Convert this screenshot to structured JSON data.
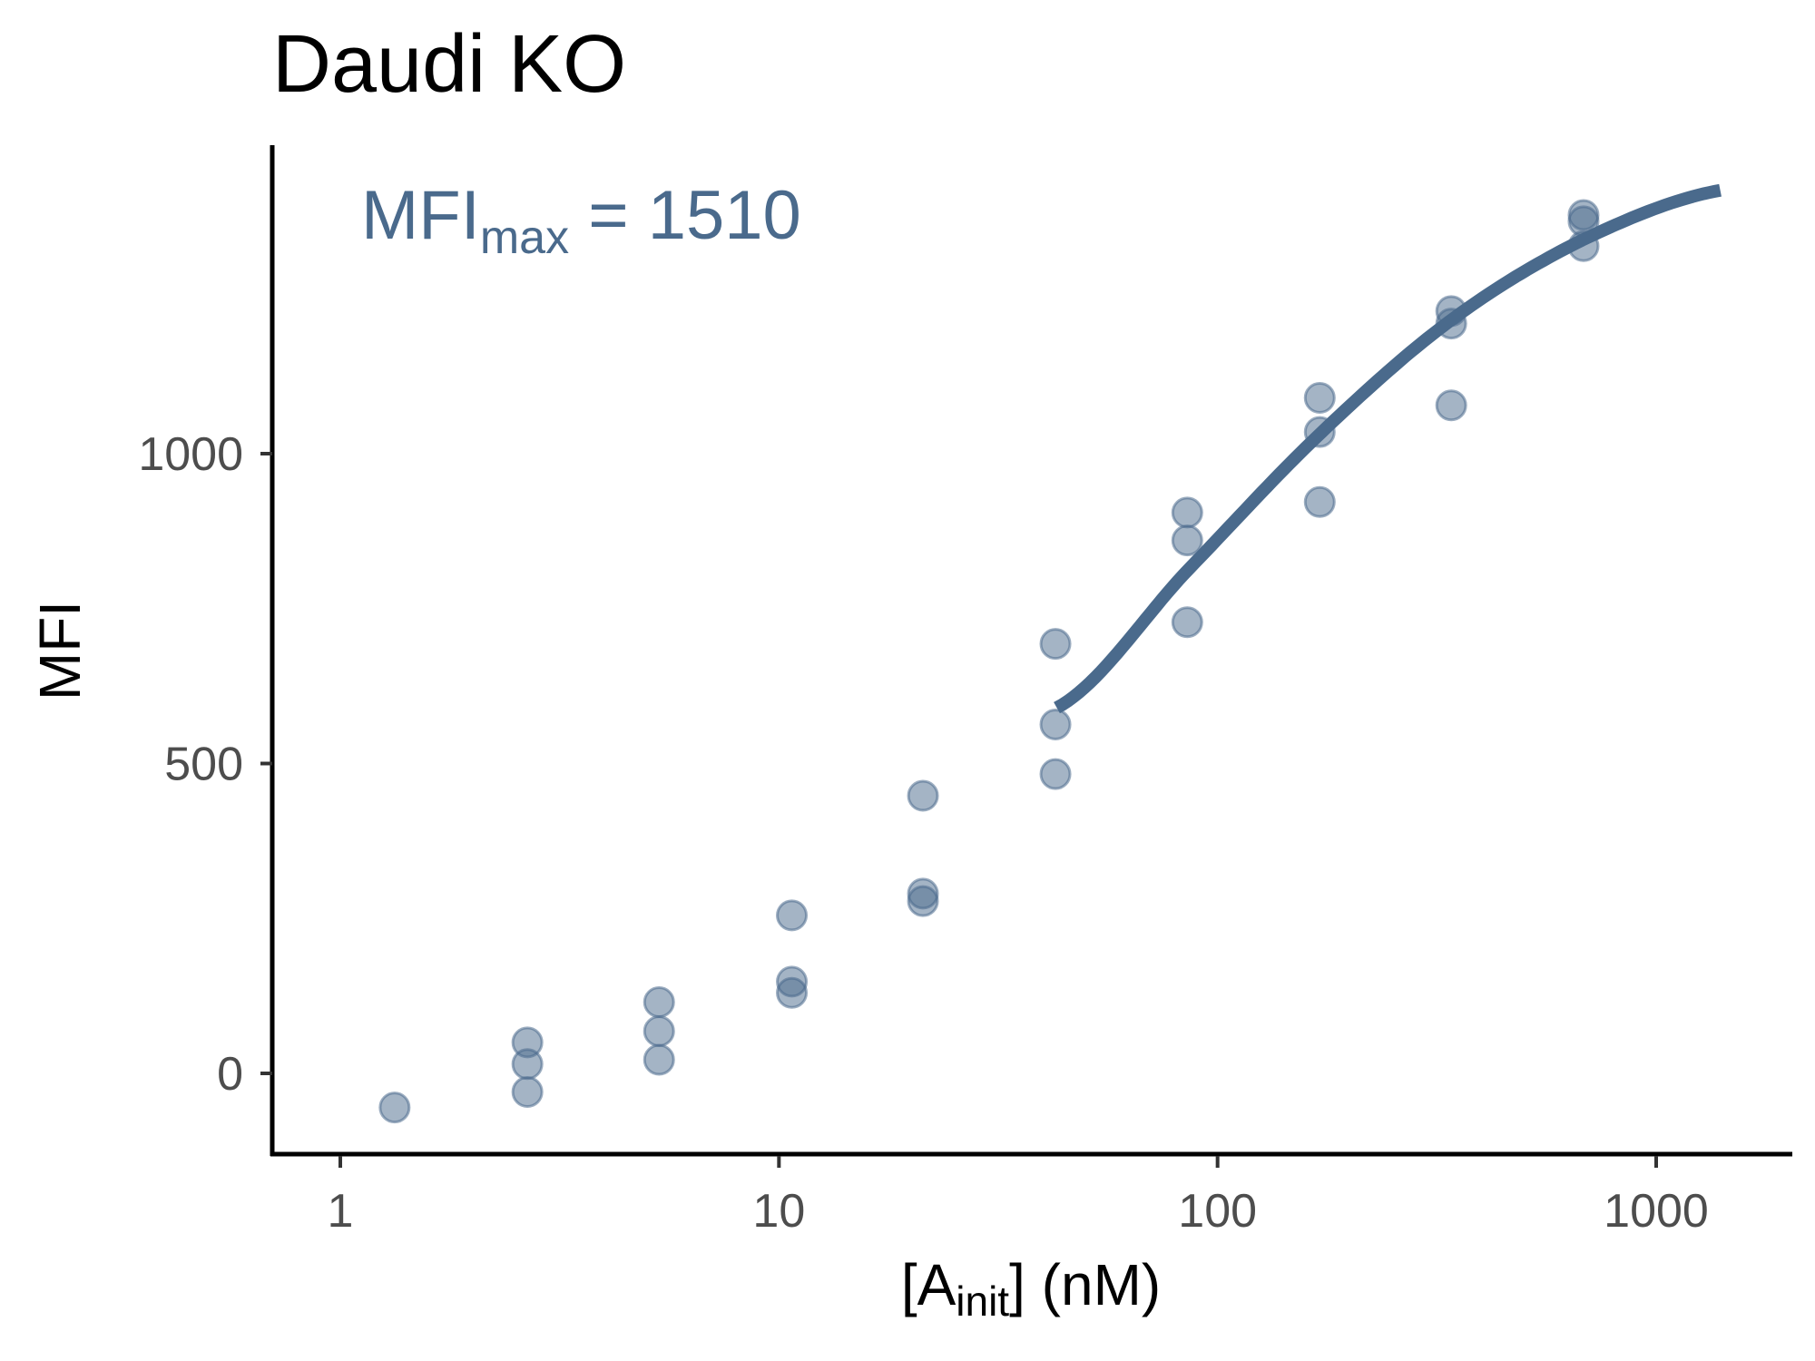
{
  "chart_data": {
    "type": "scatter",
    "title": "Daudi KO",
    "xlabel": {
      "main": "A",
      "sub": "init",
      "suffix": " (nM)",
      "open": "[",
      "close": "]"
    },
    "ylabel": "MFI",
    "x_scale": "log10",
    "xlim": [
      0.7,
      2000
    ],
    "ylim": [
      -125,
      1490
    ],
    "x_ticks": [
      1,
      10,
      100,
      1000
    ],
    "x_tick_labels": [
      "1",
      "10",
      "100",
      "1000"
    ],
    "y_ticks": [
      0,
      500,
      1000
    ],
    "y_tick_labels": [
      "0",
      "500",
      "1000"
    ],
    "grid": false,
    "color": "#4a6a8c",
    "annotation": {
      "main": "MFI",
      "sub": "max",
      "suffix": " = 1510"
    },
    "points": [
      {
        "x": 1.33,
        "y": -55
      },
      {
        "x": 2.67,
        "y": 50
      },
      {
        "x": 2.67,
        "y": 15
      },
      {
        "x": 2.67,
        "y": -30
      },
      {
        "x": 5.33,
        "y": 115
      },
      {
        "x": 5.33,
        "y": 68
      },
      {
        "x": 5.33,
        "y": 22
      },
      {
        "x": 10.7,
        "y": 255
      },
      {
        "x": 10.7,
        "y": 148
      },
      {
        "x": 10.7,
        "y": 130
      },
      {
        "x": 21.3,
        "y": 448
      },
      {
        "x": 21.3,
        "y": 290
      },
      {
        "x": 21.3,
        "y": 278
      },
      {
        "x": 42.7,
        "y": 693
      },
      {
        "x": 42.7,
        "y": 563
      },
      {
        "x": 42.7,
        "y": 483
      },
      {
        "x": 85.3,
        "y": 905
      },
      {
        "x": 85.3,
        "y": 860
      },
      {
        "x": 85.3,
        "y": 728
      },
      {
        "x": 171,
        "y": 1090
      },
      {
        "x": 171,
        "y": 1035
      },
      {
        "x": 171,
        "y": 922
      },
      {
        "x": 341,
        "y": 1230
      },
      {
        "x": 341,
        "y": 1210
      },
      {
        "x": 341,
        "y": 1078
      },
      {
        "x": 683,
        "y": 1385
      },
      {
        "x": 683,
        "y": 1375
      },
      {
        "x": 683,
        "y": 1335
      }
    ],
    "fit": {
      "x_range": [
        43,
        1400
      ],
      "curve": [
        {
          "x": 43,
          "y": 590
        },
        {
          "x": 85,
          "y": 810
        },
        {
          "x": 170,
          "y": 1030
        },
        {
          "x": 340,
          "y": 1215
        },
        {
          "x": 680,
          "y": 1345
        },
        {
          "x": 1400,
          "y": 1425
        }
      ]
    }
  }
}
